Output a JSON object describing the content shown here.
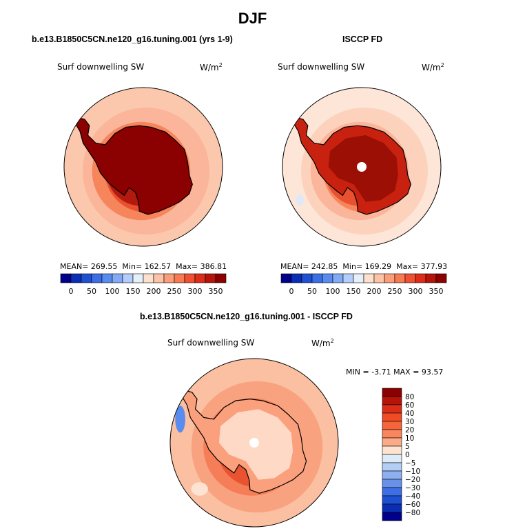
{
  "page_title": "DJF",
  "chart_data": [
    {
      "type": "polar-map",
      "title": "b.e13.B1850C5CN.ne120_g16.tuning.001 (yrs 1-9)",
      "variable": "Surf downwelling SW",
      "units_base": "W/m",
      "units_exp": "2",
      "stats": {
        "mean": "269.55",
        "min": "162.57",
        "max": "386.81"
      },
      "stats_labels": {
        "mean": "MEAN=",
        "min": "Min=",
        "max": "Max="
      },
      "colorbar_ticks": [
        "0",
        "50",
        "100",
        "150",
        "200",
        "250",
        "300",
        "350"
      ],
      "colorbar_colors": [
        "#00008b",
        "#0a2db4",
        "#1e50d2",
        "#3c6ee6",
        "#5a8cf0",
        "#82aaf5",
        "#b4cdfa",
        "#e6f0fa",
        "#fde1cf",
        "#fcc3a6",
        "#fa9e7a",
        "#f77a52",
        "#f05032",
        "#dc2d19",
        "#b4140a",
        "#8b0000"
      ],
      "rings": [
        {
          "r": 1.0,
          "color": "#fcc8ad"
        },
        {
          "r": 0.8,
          "color": "#fab59a"
        },
        {
          "r": 0.62,
          "color": "#f6855c"
        },
        {
          "r": 0.52,
          "color": "#e8502f"
        },
        {
          "r": 0.44,
          "color": "#b21a0e"
        }
      ],
      "continent_fill": "#8b0000",
      "pole_hole": false
    },
    {
      "type": "polar-map",
      "title": "ISCCP FD",
      "variable": "Surf downwelling SW",
      "units_base": "W/m",
      "units_exp": "2",
      "stats": {
        "mean": "242.85",
        "min": "169.29",
        "max": "377.93"
      },
      "stats_labels": {
        "mean": "MEAN=",
        "min": "Min=",
        "max": "Max="
      },
      "colorbar_ticks": [
        "0",
        "50",
        "100",
        "150",
        "200",
        "250",
        "300",
        "350"
      ],
      "colorbar_colors": [
        "#00008b",
        "#0a2db4",
        "#1e50d2",
        "#3c6ee6",
        "#5a8cf0",
        "#82aaf5",
        "#b4cdfa",
        "#e6f0fa",
        "#fde1cf",
        "#fcc3a6",
        "#fa9e7a",
        "#f77a52",
        "#f05032",
        "#dc2d19",
        "#b4140a",
        "#8b0000"
      ],
      "rings": [
        {
          "r": 1.0,
          "color": "#fde6d8"
        },
        {
          "r": 0.8,
          "color": "#fcd2bd"
        },
        {
          "r": 0.62,
          "color": "#fab59a"
        },
        {
          "r": 0.52,
          "color": "#f6855c"
        },
        {
          "r": 0.44,
          "color": "#e8502f"
        }
      ],
      "continent_fill": "#c8210f",
      "pole_hole": true
    },
    {
      "type": "polar-map",
      "title": "b.e13.B1850C5CN.ne120_g16.tuning.001 - ISCCP FD",
      "variable": "Surf downwelling SW",
      "units_base": "W/m",
      "units_exp": "2",
      "min_label": "MIN =",
      "max_label": "MAX =",
      "min": "-3.71",
      "max": "93.57",
      "colorbar_ticks": [
        "80",
        "60",
        "40",
        "30",
        "20",
        "10",
        "5",
        "0",
        "−5",
        "−10",
        "−20",
        "−30",
        "−40",
        "−60",
        "−80"
      ],
      "colorbar_colors": [
        "#8b0000",
        "#b4140a",
        "#dc2d19",
        "#f04b23",
        "#f5643a",
        "#f88760",
        "#fbaa88",
        "#fde3d1",
        "#ddeaf8",
        "#b4cdf5",
        "#8cafef",
        "#6a91e8",
        "#3c6ee6",
        "#1e50d2",
        "#0a2db4",
        "#00008b"
      ],
      "rings": [
        {
          "r": 1.0,
          "color": "#fbbfa2"
        },
        {
          "r": 0.78,
          "color": "#f9a27f"
        },
        {
          "r": 0.58,
          "color": "#f57d57"
        },
        {
          "r": 0.48,
          "color": "#e9532f"
        }
      ],
      "continent_fill": "#fba07c",
      "pole_hole": true
    }
  ]
}
